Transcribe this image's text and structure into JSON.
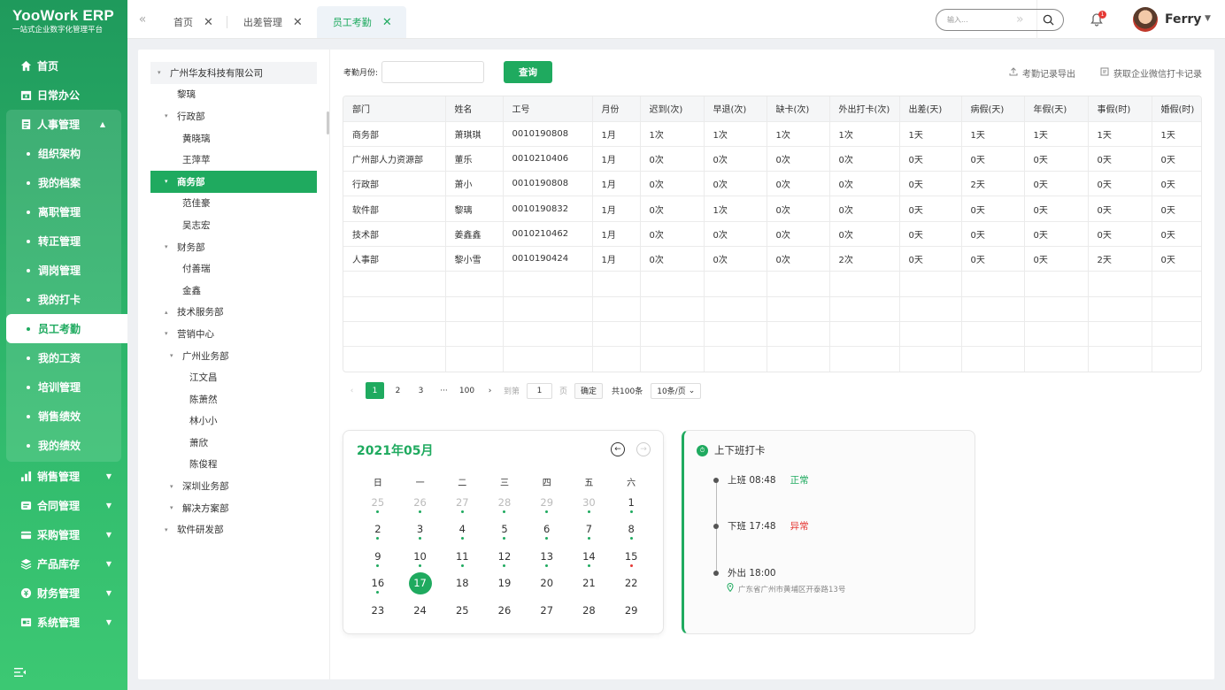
{
  "brand": {
    "title": "YooWork ERP",
    "subtitle": "一站式企业数字化管理平台"
  },
  "menu": [
    {
      "label": "首页",
      "icon": "home-icon"
    },
    {
      "label": "日常办公",
      "icon": "calendar-icon"
    },
    {
      "label": "人事管理",
      "icon": "document-icon"
    }
  ],
  "hr_sub": [
    "组织架构",
    "我的档案",
    "离职管理",
    "转正管理",
    "调岗管理",
    "我的打卡",
    "员工考勤",
    "我的工资",
    "培训管理",
    "销售绩效",
    "我的绩效"
  ],
  "hr_active_index": 6,
  "menu_after": [
    {
      "label": "销售管理",
      "icon": "bar-chart-icon"
    },
    {
      "label": "合同管理",
      "icon": "contract-icon"
    },
    {
      "label": "采购管理",
      "icon": "purchase-icon"
    },
    {
      "label": "产品库存",
      "icon": "layers-icon"
    },
    {
      "label": "财务管理",
      "icon": "finance-icon"
    },
    {
      "label": "系统管理",
      "icon": "settings-icon"
    }
  ],
  "tabs": [
    {
      "label": "首页"
    },
    {
      "label": "出差管理"
    },
    {
      "label": "员工考勤",
      "active": true
    }
  ],
  "search": {
    "placeholder": "输入..."
  },
  "notifications": {
    "count": "1"
  },
  "user": {
    "name": "Ferry"
  },
  "tree": [
    {
      "label": "广州华友科技有限公司",
      "level": 0,
      "toggle": "▾",
      "root": true
    },
    {
      "label": "黎璃",
      "level": 1,
      "toggle": ""
    },
    {
      "label": "行政部",
      "level": 1,
      "toggle": "▾"
    },
    {
      "label": "黄晓璃",
      "level": 2,
      "toggle": ""
    },
    {
      "label": "王萍苹",
      "level": 2,
      "toggle": ""
    },
    {
      "label": "商务部",
      "level": 1,
      "toggle": "▾",
      "selected": true
    },
    {
      "label": "范佳豪",
      "level": 2,
      "toggle": ""
    },
    {
      "label": "吴志宏",
      "level": 2,
      "toggle": ""
    },
    {
      "label": "财务部",
      "level": 1,
      "toggle": "▾"
    },
    {
      "label": "付善瑞",
      "level": 2,
      "toggle": ""
    },
    {
      "label": "金鑫",
      "level": 2,
      "toggle": ""
    },
    {
      "label": "技术服务部",
      "level": 1,
      "toggle": "▴"
    },
    {
      "label": "营销中心",
      "level": 1,
      "toggle": "▾"
    },
    {
      "label": "广州业务部",
      "level": 2,
      "toggle": "▾"
    },
    {
      "label": "江文昌",
      "level": 3,
      "toggle": ""
    },
    {
      "label": "陈萧然",
      "level": 3,
      "toggle": ""
    },
    {
      "label": "林小小",
      "level": 3,
      "toggle": ""
    },
    {
      "label": "萧欣",
      "level": 3,
      "toggle": ""
    },
    {
      "label": "陈俊程",
      "level": 3,
      "toggle": ""
    },
    {
      "label": "深圳业务部",
      "level": 2,
      "toggle": "▾"
    },
    {
      "label": "解决方案部",
      "level": 2,
      "toggle": "▾"
    },
    {
      "label": "软件研发部",
      "level": 1,
      "toggle": "▾"
    }
  ],
  "filter": {
    "label": "考勤月份:",
    "query_button": "查询"
  },
  "links": {
    "export": "考勤记录导出",
    "wechat": "获取企业微信打卡记录"
  },
  "table": {
    "headers": [
      "部门",
      "姓名",
      "工号",
      "月份",
      "迟到(次)",
      "早退(次)",
      "缺卡(次)",
      "外出打卡(次)",
      "出差(天)",
      "病假(天)",
      "年假(天)",
      "事假(时)",
      "婚假(时)"
    ],
    "rows": [
      [
        "商务部",
        "萧琪琪",
        "0010190808",
        "1月",
        "1次",
        "1次",
        "1次",
        "1次",
        "1天",
        "1天",
        "1天",
        "1天",
        "1天"
      ],
      [
        "广州部人力资源部",
        "董乐",
        "0010210406",
        "1月",
        "0次",
        "0次",
        "0次",
        "0次",
        "0天",
        "0天",
        "0天",
        "0天",
        "0天"
      ],
      [
        "行政部",
        "萧小",
        "0010190808",
        "1月",
        "0次",
        "0次",
        "0次",
        "0次",
        "0天",
        "2天",
        "0天",
        "0天",
        "0天"
      ],
      [
        "软件部",
        "黎璃",
        "0010190832",
        "1月",
        "0次",
        "1次",
        "0次",
        "0次",
        "0天",
        "0天",
        "0天",
        "0天",
        "0天"
      ],
      [
        "技术部",
        "姜鑫鑫",
        "0010210462",
        "1月",
        "0次",
        "0次",
        "0次",
        "0次",
        "0天",
        "0天",
        "0天",
        "0天",
        "0天"
      ],
      [
        "人事部",
        "黎小雪",
        "0010190424",
        "1月",
        "0次",
        "0次",
        "0次",
        "2次",
        "0天",
        "0天",
        "0天",
        "2天",
        "0天"
      ],
      [
        "",
        "",
        "",
        "",
        "",
        "",
        "",
        "",
        "",
        "",
        "",
        "",
        ""
      ],
      [
        "",
        "",
        "",
        "",
        "",
        "",
        "",
        "",
        "",
        "",
        "",
        "",
        ""
      ],
      [
        "",
        "",
        "",
        "",
        "",
        "",
        "",
        "",
        "",
        "",
        "",
        "",
        ""
      ],
      [
        "",
        "",
        "",
        "",
        "",
        "",
        "",
        "",
        "",
        "",
        "",
        "",
        ""
      ]
    ]
  },
  "pager": {
    "pages": [
      "1",
      "2",
      "3",
      "···",
      "100"
    ],
    "current": "1",
    "goto_label": "到第",
    "goto_value": "1",
    "page_unit": "页",
    "confirm": "确定",
    "total": "共100条",
    "page_size": "10条/页"
  },
  "calendar": {
    "title": "2021年05月",
    "weekdays": [
      "日",
      "一",
      "二",
      "三",
      "四",
      "五",
      "六"
    ],
    "days": [
      {
        "d": "25",
        "other": true,
        "dot": "#1faa5f"
      },
      {
        "d": "26",
        "other": true,
        "dot": "#1faa5f"
      },
      {
        "d": "27",
        "other": true,
        "dot": "#1faa5f"
      },
      {
        "d": "28",
        "other": true,
        "dot": "#1faa5f"
      },
      {
        "d": "29",
        "other": true,
        "dot": "#1faa5f"
      },
      {
        "d": "30",
        "other": true,
        "dot": "#1faa5f"
      },
      {
        "d": "1",
        "dot": "#1faa5f"
      },
      {
        "d": "2",
        "dot": "#1faa5f"
      },
      {
        "d": "3",
        "dot": "#1faa5f"
      },
      {
        "d": "4",
        "dot": "#1faa5f"
      },
      {
        "d": "5",
        "dot": "#1faa5f"
      },
      {
        "d": "6",
        "dot": "#1faa5f"
      },
      {
        "d": "7",
        "dot": "#1faa5f"
      },
      {
        "d": "8",
        "dot": "#1faa5f"
      },
      {
        "d": "9",
        "dot": "#1faa5f"
      },
      {
        "d": "10",
        "dot": "#1faa5f"
      },
      {
        "d": "11",
        "dot": "#1faa5f"
      },
      {
        "d": "12",
        "dot": "#1faa5f"
      },
      {
        "d": "13",
        "dot": "#1faa5f"
      },
      {
        "d": "14",
        "dot": "#1faa5f"
      },
      {
        "d": "15",
        "dot": "#e53935"
      },
      {
        "d": "16",
        "dot": "#1faa5f"
      },
      {
        "d": "17",
        "today": true
      },
      {
        "d": "18"
      },
      {
        "d": "19"
      },
      {
        "d": "20"
      },
      {
        "d": "21"
      },
      {
        "d": "22"
      },
      {
        "d": "23"
      },
      {
        "d": "24"
      },
      {
        "d": "25"
      },
      {
        "d": "26"
      },
      {
        "d": "27"
      },
      {
        "d": "28"
      },
      {
        "d": "29"
      }
    ]
  },
  "clock": {
    "title": "上下班打卡",
    "entries": [
      {
        "label": "上班",
        "time": "08:48",
        "status": "正常",
        "color": "#1faa5f"
      },
      {
        "label": "下班",
        "time": "17:48",
        "status": "异常",
        "color": "#e53935"
      },
      {
        "label": "外出",
        "time": "18:00",
        "status": "",
        "color": ""
      }
    ],
    "location": "广东省广州市黄埔区开泰路13号"
  },
  "colors": {
    "accent": "#1faa5f",
    "error": "#e53935"
  }
}
